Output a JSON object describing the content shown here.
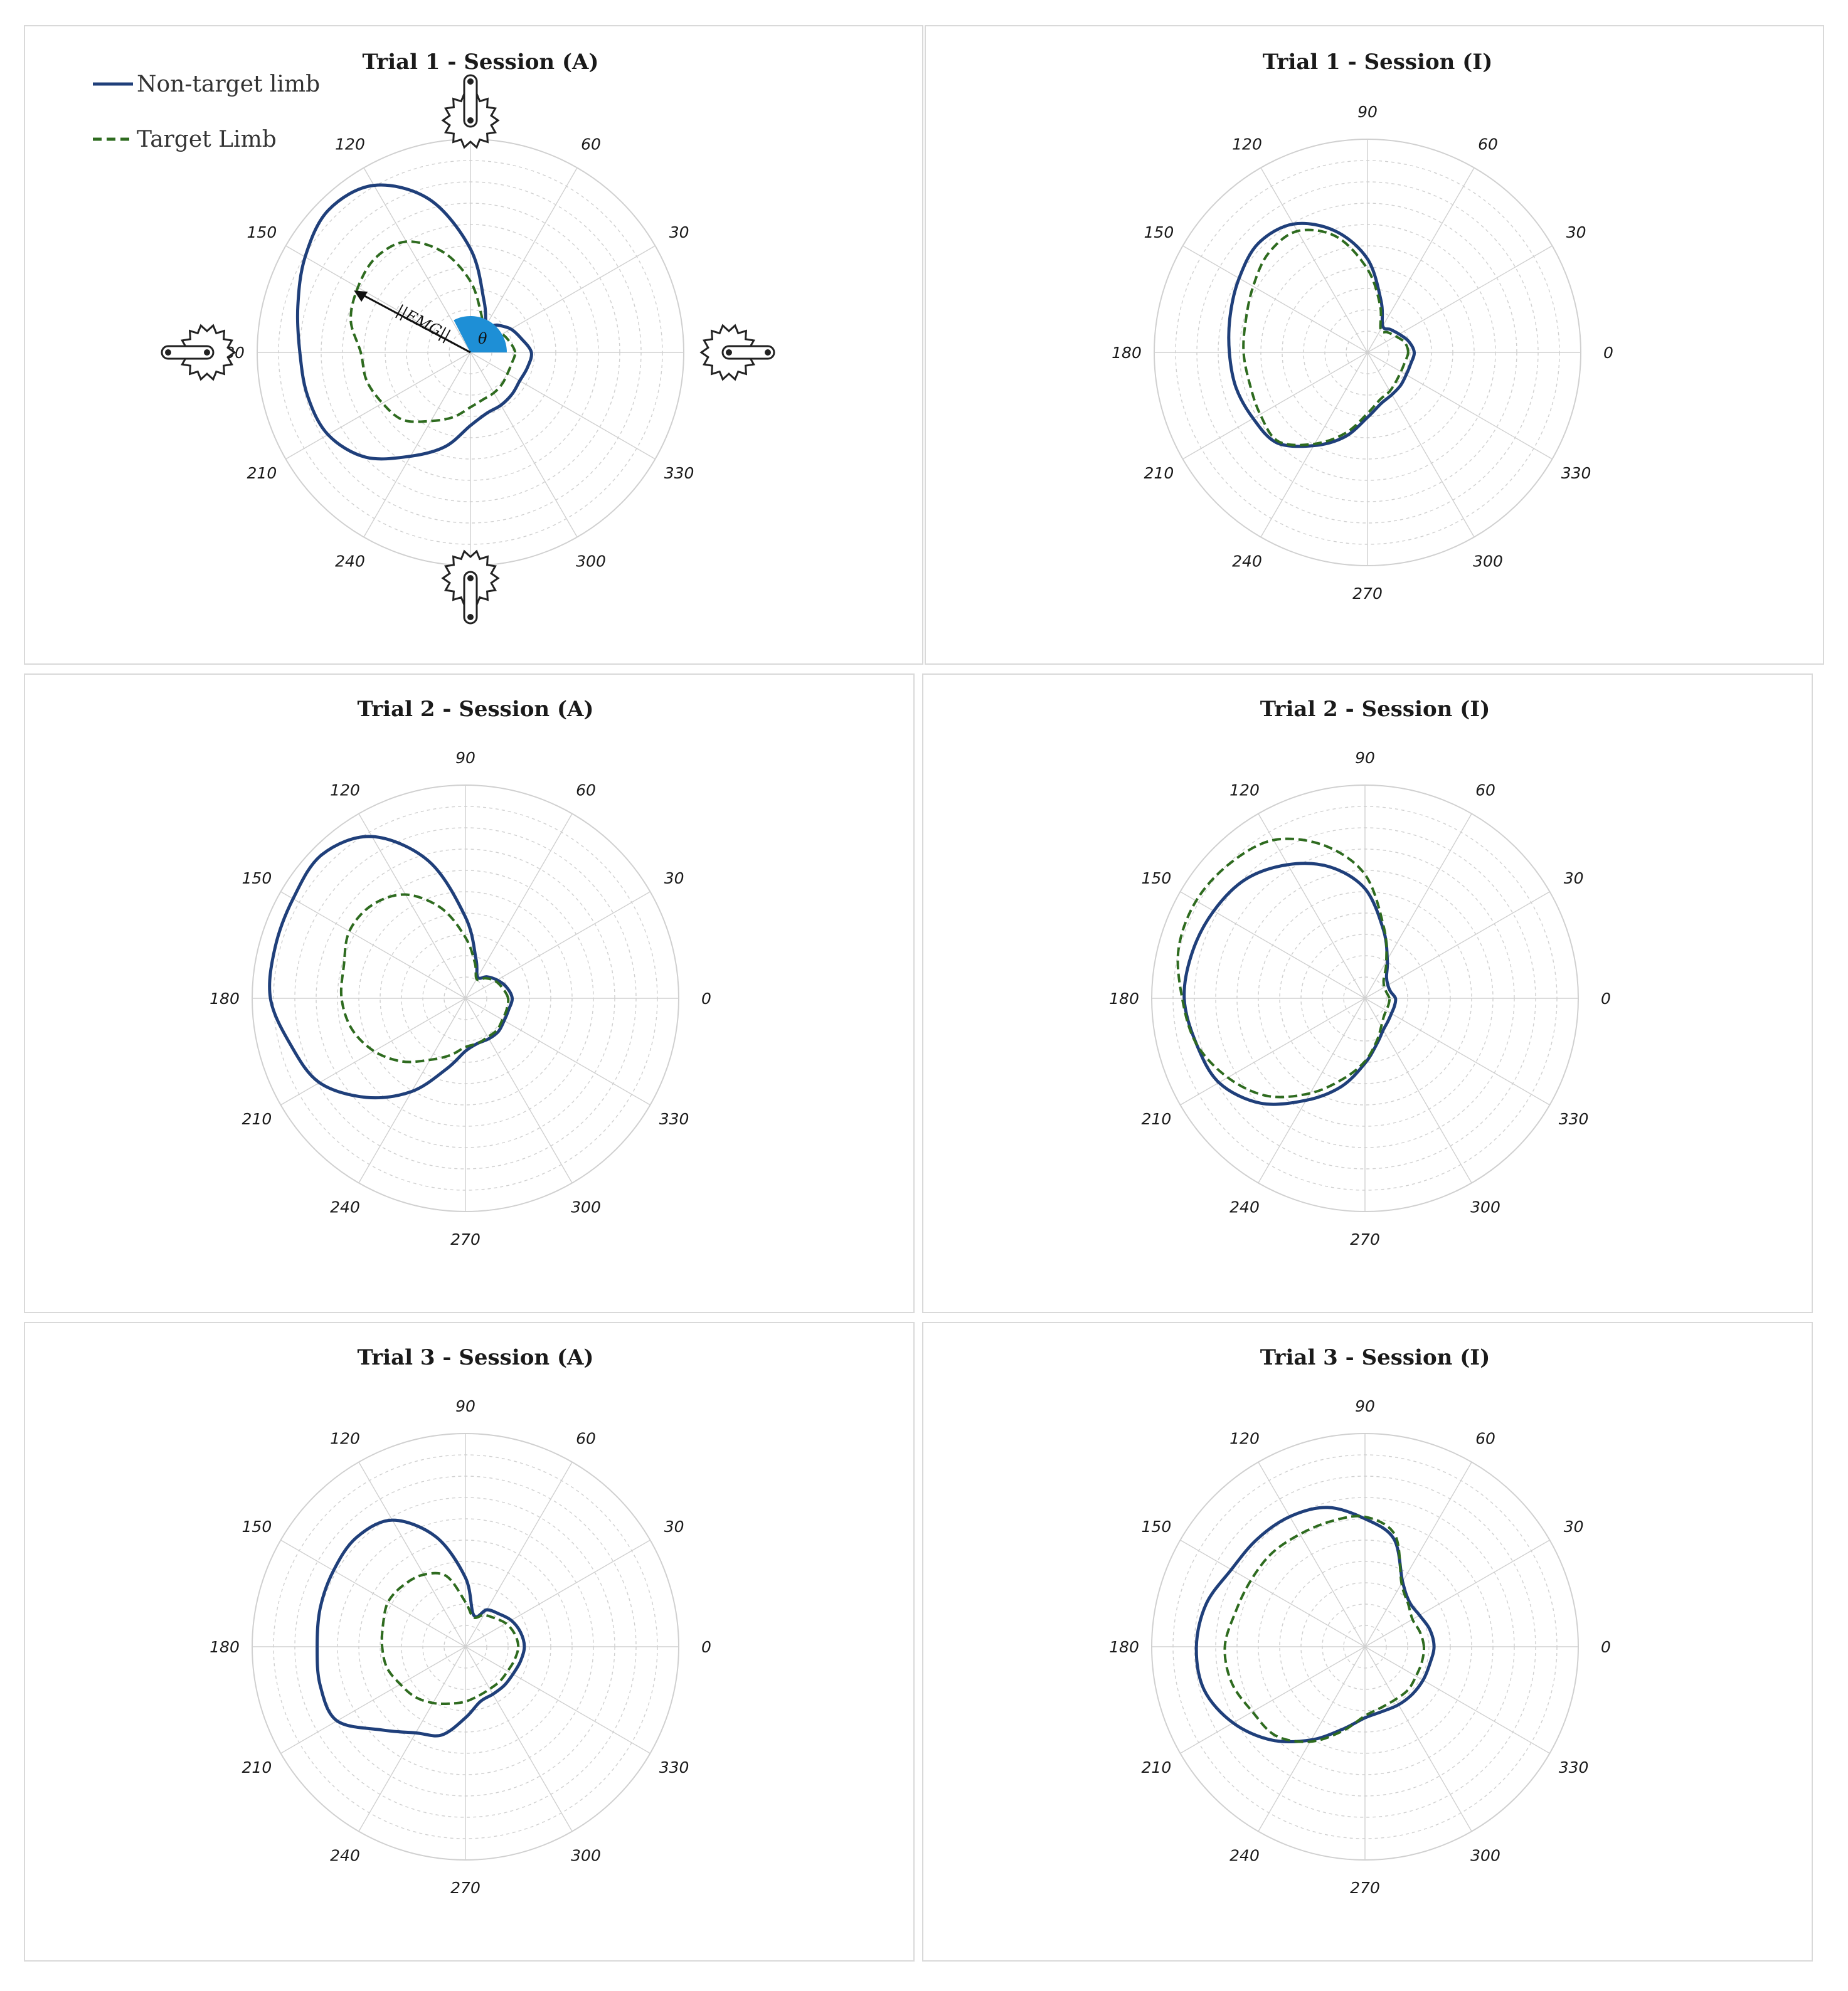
{
  "legend": {
    "non_target": "Non-target limb",
    "target": "Target Limb"
  },
  "colors": {
    "non_target": "#1f3f7a",
    "target": "#2e6b1f",
    "theta_fill": "#1e8fd6",
    "grid": "#d0d0d0"
  },
  "annotations": {
    "emg_label": "||EMG||",
    "theta_label": "θ",
    "crank_icons": [
      "crank-arm-90-icon",
      "crank-arm-180-icon",
      "crank-arm-0-icon",
      "crank-arm-270-icon"
    ]
  },
  "chart_data": [
    {
      "type": "polar-line",
      "title": "Trial 1 - Session (A)",
      "angle_ticks": [
        0,
        30,
        60,
        90,
        120,
        150,
        180,
        210,
        240,
        270,
        300,
        330
      ],
      "radial_rings": 10,
      "theta_deg": [
        0,
        15,
        30,
        45,
        60,
        75,
        90,
        105,
        120,
        135,
        150,
        165,
        180,
        195,
        210,
        225,
        240,
        255,
        270,
        285,
        300,
        315,
        330,
        345
      ],
      "series": [
        {
          "name": "Non-target limb",
          "style": "solid",
          "r": [
            3.0,
            2.6,
            2.3,
            1.9,
            1.6,
            2.6,
            5.1,
            7.8,
            9.5,
            9.9,
            9.4,
            8.8,
            8.4,
            8.3,
            8.1,
            7.3,
            5.9,
            4.8,
            3.6,
            3.1,
            3.0,
            2.9,
            2.8,
            2.9
          ]
        },
        {
          "name": "Target Limb",
          "style": "solid",
          "r": [
            2.2,
            2.0,
            1.8,
            1.5,
            1.3,
            2.0,
            3.5,
            5.1,
            6.3,
            6.6,
            6.4,
            6.1,
            5.4,
            5.3,
            5.0,
            4.7,
            3.9,
            3.3,
            2.7,
            2.4,
            2.3,
            2.2,
            2.1,
            2.1
          ]
        }
      ]
    },
    {
      "type": "polar-line",
      "title": "Trial 1 - Session (I)",
      "angle_ticks": [
        0,
        30,
        60,
        90,
        120,
        150,
        180,
        210,
        240,
        270,
        300,
        330
      ],
      "radial_rings": 10,
      "theta_deg": [
        0,
        15,
        30,
        45,
        60,
        75,
        90,
        105,
        120,
        135,
        150,
        165,
        180,
        195,
        210,
        225,
        240,
        255,
        270,
        285,
        300,
        315,
        330,
        345
      ],
      "series": [
        {
          "name": "Non-target limb",
          "style": "solid",
          "r": [
            2.3,
            2.1,
            1.8,
            1.6,
            1.5,
            2.6,
            4.6,
            6.2,
            7.3,
            7.6,
            7.3,
            7.0,
            6.8,
            6.7,
            6.5,
            6.3,
            5.3,
            4.3,
            3.2,
            2.6,
            2.4,
            2.3,
            2.2,
            2.2
          ]
        },
        {
          "name": "Target Limb",
          "style": "solid",
          "r": [
            2.0,
            1.9,
            1.6,
            1.4,
            1.3,
            2.4,
            4.1,
            5.9,
            6.9,
            6.9,
            6.5,
            6.2,
            6.1,
            6.0,
            6.1,
            6.2,
            5.2,
            4.1,
            3.0,
            2.4,
            2.2,
            2.0,
            1.9,
            1.9
          ]
        }
      ]
    },
    {
      "type": "polar-line",
      "title": "Trial 2 - Session (A)",
      "angle_ticks": [
        0,
        30,
        60,
        90,
        120,
        150,
        180,
        210,
        240,
        270,
        300,
        330
      ],
      "radial_rings": 10,
      "theta_deg": [
        0,
        15,
        30,
        45,
        60,
        75,
        90,
        105,
        120,
        135,
        150,
        165,
        180,
        195,
        210,
        225,
        240,
        255,
        270,
        285,
        300,
        315,
        330,
        345
      ],
      "series": [
        {
          "name": "Non-target limb",
          "style": "solid",
          "r": [
            2.3,
            2.1,
            1.8,
            1.5,
            1.2,
            2.0,
            4.0,
            7.0,
            9.2,
            10.0,
            9.8,
            9.7,
            9.6,
            8.9,
            8.3,
            6.9,
            5.3,
            3.6,
            2.6,
            2.3,
            2.3,
            2.3,
            2.2,
            2.2
          ]
        },
        {
          "name": "Target Limb",
          "style": "solid",
          "r": [
            2.1,
            1.9,
            1.7,
            1.4,
            1.1,
            1.8,
            3.0,
            4.6,
            5.9,
            6.5,
            6.6,
            6.2,
            6.1,
            5.8,
            5.2,
            4.4,
            3.5,
            2.9,
            2.4,
            2.3,
            2.2,
            2.2,
            2.1,
            2.1
          ]
        }
      ]
    },
    {
      "type": "polar-line",
      "title": "Trial 2 - Session (I)",
      "angle_ticks": [
        0,
        30,
        60,
        90,
        120,
        150,
        180,
        210,
        240,
        270,
        300,
        330
      ],
      "radial_rings": 10,
      "theta_deg": [
        0,
        15,
        30,
        45,
        60,
        75,
        90,
        105,
        120,
        135,
        150,
        165,
        180,
        195,
        210,
        225,
        240,
        255,
        270,
        285,
        300,
        315,
        330,
        345
      ],
      "series": [
        {
          "name": "Non-target limb",
          "style": "solid",
          "r": [
            1.5,
            1.3,
            1.3,
            1.5,
            2.2,
            3.5,
            5.4,
            6.7,
            7.6,
            8.3,
            8.6,
            8.8,
            8.9,
            8.6,
            8.3,
            7.3,
            5.8,
            4.5,
            3.2,
            2.3,
            1.8,
            1.6,
            1.5,
            1.5
          ]
        },
        {
          "name": "Target Limb",
          "style": "solid",
          "r": [
            1.2,
            1.1,
            1.1,
            1.3,
            2.1,
            3.6,
            6.1,
            7.8,
            9.0,
            9.4,
            9.6,
            9.5,
            9.0,
            8.6,
            7.8,
            6.8,
            5.4,
            4.1,
            3.1,
            2.2,
            1.6,
            1.3,
            1.2,
            1.2
          ]
        }
      ]
    },
    {
      "type": "polar-line",
      "title": "Trial 3 - Session (A)",
      "angle_ticks": [
        0,
        30,
        60,
        90,
        120,
        150,
        180,
        210,
        240,
        270,
        300,
        330
      ],
      "radial_rings": 10,
      "theta_deg": [
        0,
        15,
        30,
        45,
        60,
        75,
        90,
        105,
        120,
        135,
        150,
        165,
        180,
        195,
        210,
        225,
        240,
        255,
        270,
        285,
        300,
        315,
        330,
        345
      ],
      "series": [
        {
          "name": "Non-target limb",
          "style": "solid",
          "r": [
            2.9,
            2.8,
            2.6,
            2.3,
            2.1,
            1.6,
            3.4,
            5.6,
            7.2,
            7.6,
            7.5,
            7.4,
            7.3,
            7.4,
            7.3,
            5.8,
            4.9,
            4.5,
            3.5,
            2.8,
            2.7,
            2.7,
            2.7,
            2.8
          ]
        },
        {
          "name": "Target Limb",
          "style": "solid",
          "r": [
            2.6,
            2.5,
            2.3,
            2.0,
            1.8,
            1.5,
            2.2,
            3.6,
            4.1,
            4.3,
            4.4,
            4.2,
            4.1,
            4.0,
            3.7,
            3.5,
            3.2,
            2.9,
            2.7,
            2.5,
            2.4,
            2.4,
            2.4,
            2.5
          ]
        }
      ]
    },
    {
      "type": "polar-line",
      "title": "Trial 3 - Session (I)",
      "angle_ticks": [
        0,
        30,
        60,
        90,
        120,
        150,
        180,
        210,
        240,
        270,
        300,
        330
      ],
      "radial_rings": 10,
      "theta_deg": [
        0,
        15,
        30,
        45,
        60,
        75,
        90,
        105,
        120,
        135,
        150,
        165,
        180,
        195,
        210,
        225,
        240,
        255,
        270,
        285,
        300,
        315,
        330,
        345
      ],
      "series": [
        {
          "name": "Non-target limb",
          "style": "solid",
          "r": [
            3.4,
            3.3,
            3.1,
            3.1,
            3.7,
            5.5,
            6.3,
            7.1,
            7.4,
            7.5,
            7.6,
            8.1,
            8.3,
            8.2,
            7.5,
            6.5,
            5.3,
            4.2,
            3.5,
            3.3,
            3.3,
            3.3,
            3.3,
            3.3
          ]
        },
        {
          "name": "Target Limb",
          "style": "solid",
          "r": [
            2.9,
            2.8,
            2.7,
            3.0,
            3.6,
            5.7,
            6.4,
            6.4,
            6.4,
            6.5,
            6.5,
            6.6,
            6.9,
            6.8,
            6.4,
            6.2,
            5.4,
            4.3,
            3.4,
            3.1,
            3.0,
            3.0,
            2.9,
            2.9
          ]
        }
      ]
    }
  ]
}
